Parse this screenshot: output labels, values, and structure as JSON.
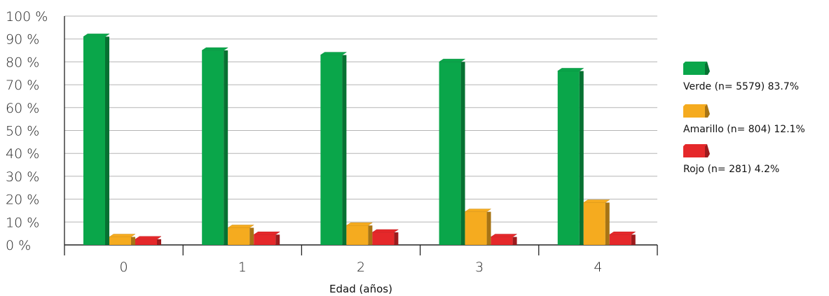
{
  "chart_data": {
    "type": "bar",
    "title": "",
    "xlabel": "Edad (años)",
    "ylabel": "",
    "categories": [
      "0",
      "1",
      "2",
      "3",
      "4"
    ],
    "y_tick_labels": [
      "0 %",
      "10 %",
      "20 %",
      "30 %",
      "40 %",
      "50 %",
      "60 %",
      "70 %",
      "80 %",
      "90 %",
      "100 %"
    ],
    "ylim": [
      0,
      100
    ],
    "grid": true,
    "legend_placement": "right",
    "series": [
      {
        "name": "Verde (n= 5579) 83.7%",
        "color": "#0aa64a",
        "values": [
          91,
          85,
          83,
          80,
          76
        ]
      },
      {
        "name": "Amarillo (n= 804) 12.1%",
        "color": "#f5ab1f",
        "values": [
          3.5,
          7.5,
          8.5,
          14.5,
          18.5
        ]
      },
      {
        "name": "Rojo (n= 281) 4.2%",
        "color": "#e5282a",
        "values": [
          2.5,
          4.5,
          5.5,
          3.5,
          4.5
        ]
      }
    ]
  }
}
